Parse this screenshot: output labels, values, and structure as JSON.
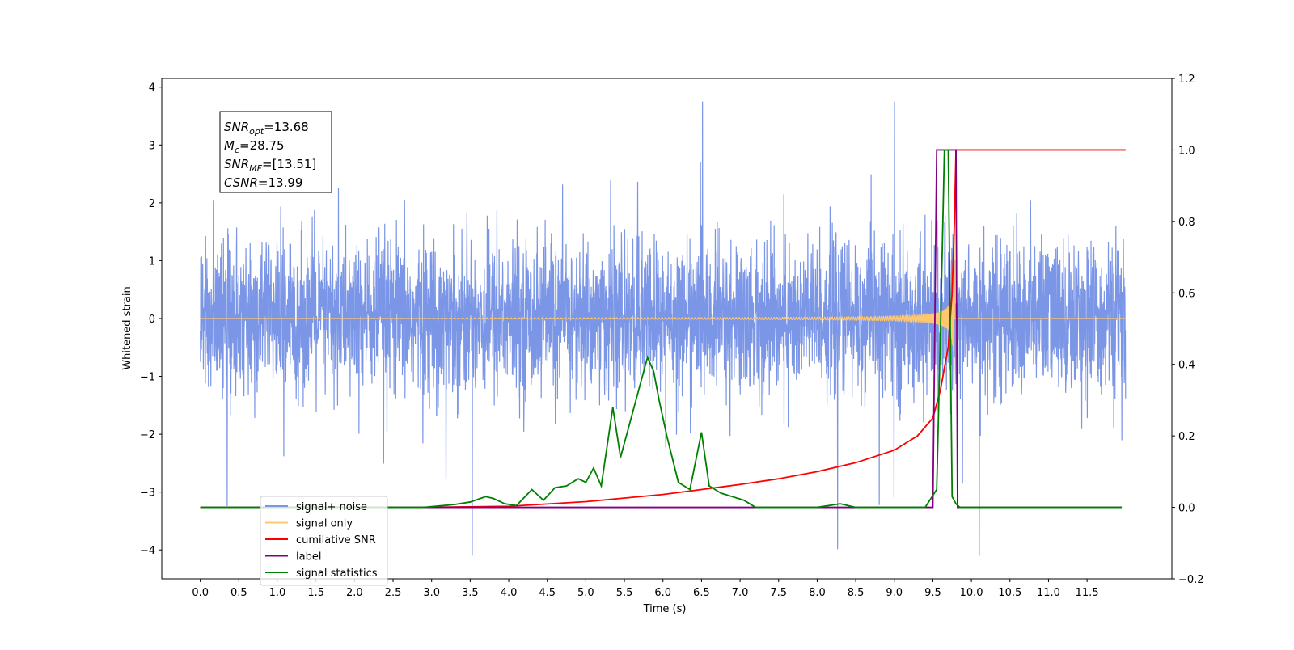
{
  "chart_data": {
    "type": "line",
    "title": "",
    "xlabel": "Time (s)",
    "ylabel": "Whitened strain",
    "y2label": "",
    "xlim": [
      -0.5,
      12.6
    ],
    "ylim": [
      -4.5,
      4.15
    ],
    "y2lim": [
      -0.2,
      1.2
    ],
    "grid": false,
    "legend_placement": "lower-left",
    "x_ticks": [
      0.0,
      0.5,
      1.0,
      1.5,
      2.0,
      2.5,
      3.0,
      3.5,
      4.0,
      4.5,
      5.0,
      5.5,
      6.0,
      6.5,
      7.0,
      7.5,
      8.0,
      8.5,
      9.0,
      9.5,
      10.0,
      10.5,
      11.0,
      11.5
    ],
    "x_tick_labels": [
      "0.0",
      "0.5",
      "1.0",
      "1.5",
      "2.0",
      "2.5",
      "3.0",
      "3.5",
      "4.0",
      "4.5",
      "5.0",
      "5.5",
      "6.0",
      "6.5",
      "7.0",
      "7.5",
      "8.0",
      "8.5",
      "9.0",
      "9.5",
      "10.0",
      "10.5",
      "11.0",
      "11.5"
    ],
    "y_ticks": [
      -4,
      -3,
      -2,
      -1,
      0,
      1,
      2,
      3,
      4
    ],
    "y_tick_labels": [
      "−4",
      "−3",
      "−2",
      "−1",
      "0",
      "1",
      "2",
      "3",
      "4"
    ],
    "y2_ticks": [
      -0.2,
      0.0,
      0.2,
      0.4,
      0.6,
      0.8,
      1.0,
      1.2
    ],
    "y2_tick_labels": [
      "−0.2",
      "0.0",
      "0.2",
      "0.4",
      "0.6",
      "0.8",
      "1.0",
      "1.2"
    ],
    "annotation_lines": [
      {
        "symbol": "SNR",
        "sub": "opt",
        "value": "=13.68"
      },
      {
        "symbol": "M",
        "sub": "c",
        "value": "=28.75"
      },
      {
        "symbol": "SNR",
        "sub": "MF",
        "value": "=[13.51]"
      },
      {
        "symbol": "CSNR",
        "sub": "",
        "value": "=13.99"
      }
    ],
    "series": [
      {
        "name": "signal+ noise",
        "axis": "left",
        "color": "#7b96e6",
        "kind": "noise",
        "x_range": [
          0.0,
          12.0
        ],
        "typical_envelope": [
          -1.6,
          1.6
        ],
        "extreme_range": [
          -4.1,
          3.75
        ]
      },
      {
        "name": "signal only",
        "axis": "left",
        "color": "#ffc86e",
        "kind": "chirp",
        "x_range": [
          0.0,
          12.0
        ],
        "merger_time": 9.78,
        "peak_amplitude": 3.1
      },
      {
        "name": "cumilative SNR",
        "axis": "right",
        "color": "#ff0000",
        "x": [
          0.0,
          2.9,
          4.0,
          5.0,
          6.0,
          6.5,
          7.0,
          7.5,
          8.0,
          8.5,
          9.0,
          9.3,
          9.5,
          9.6,
          9.7,
          9.75,
          9.78,
          9.8,
          12.0
        ],
        "values": [
          0.0,
          0.0,
          0.003,
          0.016,
          0.036,
          0.05,
          0.064,
          0.08,
          0.1,
          0.125,
          0.16,
          0.2,
          0.25,
          0.33,
          0.45,
          0.6,
          0.8,
          1.0,
          1.0
        ]
      },
      {
        "name": "label",
        "axis": "right",
        "color": "#800080",
        "x": [
          0.0,
          9.5,
          9.55,
          9.8,
          9.82,
          11.95
        ],
        "values": [
          0.0,
          0.0,
          1.0,
          1.0,
          0.0,
          0.0
        ]
      },
      {
        "name": "signal statistics",
        "axis": "right",
        "color": "#008000",
        "x": [
          0.0,
          2.9,
          3.1,
          3.3,
          3.5,
          3.7,
          3.8,
          3.95,
          4.1,
          4.3,
          4.45,
          4.6,
          4.75,
          4.9,
          5.0,
          5.1,
          5.2,
          5.35,
          5.45,
          5.55,
          5.65,
          5.8,
          5.88,
          5.95,
          6.05,
          6.2,
          6.35,
          6.5,
          6.6,
          6.75,
          6.9,
          7.05,
          7.2,
          7.4,
          8.0,
          8.3,
          8.5,
          9.0,
          9.4,
          9.55,
          9.6,
          9.65,
          9.7,
          9.75,
          9.8,
          9.85,
          11.95
        ],
        "values": [
          0.0,
          0.0,
          0.004,
          0.008,
          0.015,
          0.03,
          0.025,
          0.01,
          0.005,
          0.05,
          0.02,
          0.055,
          0.06,
          0.08,
          0.07,
          0.11,
          0.06,
          0.28,
          0.14,
          0.22,
          0.3,
          0.42,
          0.38,
          0.3,
          0.2,
          0.07,
          0.05,
          0.21,
          0.06,
          0.04,
          0.03,
          0.02,
          0.0,
          0.0,
          0.0,
          0.01,
          0.0,
          0.0,
          0.0,
          0.05,
          0.5,
          1.0,
          1.0,
          0.03,
          0.01,
          0.0,
          0.0
        ]
      }
    ]
  }
}
